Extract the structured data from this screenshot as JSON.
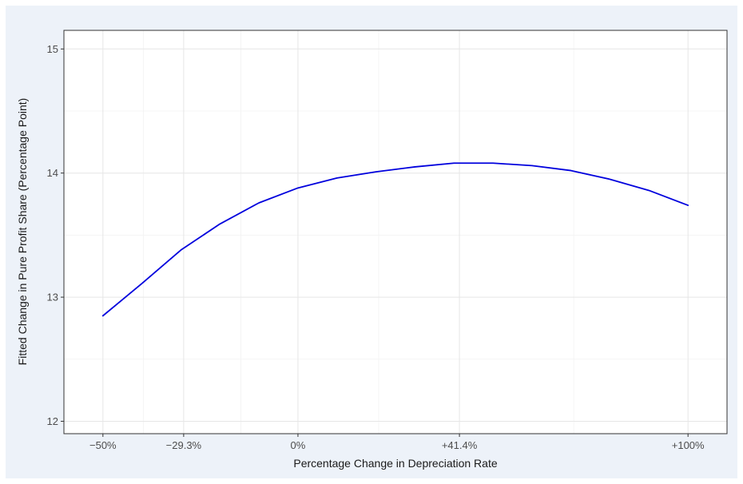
{
  "chart_data": {
    "type": "line",
    "title": "",
    "xlabel": "Percentage Change in Depreciation Rate",
    "ylabel": "Fitted Change in Pure Profit Share (Percentage Point)",
    "grid": true,
    "legend": "none",
    "xlim": [
      -0.6,
      1.1
    ],
    "ylim": [
      11.9,
      15.15
    ],
    "x_ticks": [
      {
        "value": -0.5,
        "label": "−50%"
      },
      {
        "value": -0.293,
        "label": "−29.3%"
      },
      {
        "value": 0,
        "label": "0%"
      },
      {
        "value": 0.414,
        "label": "+41.4%"
      },
      {
        "value": 1.0,
        "label": "+100%"
      }
    ],
    "y_ticks": [
      {
        "value": 12,
        "label": "12"
      },
      {
        "value": 13,
        "label": "13"
      },
      {
        "value": 14,
        "label": "14"
      },
      {
        "value": 15,
        "label": "15"
      }
    ],
    "series": [
      {
        "color": "#0000dd",
        "x": [
          -0.5,
          -0.4,
          -0.3,
          -0.2,
          -0.1,
          0.0,
          0.1,
          0.2,
          0.3,
          0.4,
          0.5,
          0.6,
          0.7,
          0.8,
          0.9,
          1.0
        ],
        "y": [
          12.85,
          13.11,
          13.38,
          13.59,
          13.76,
          13.88,
          13.96,
          14.01,
          14.05,
          14.08,
          14.08,
          14.06,
          14.02,
          13.95,
          13.86,
          13.74
        ]
      }
    ]
  }
}
